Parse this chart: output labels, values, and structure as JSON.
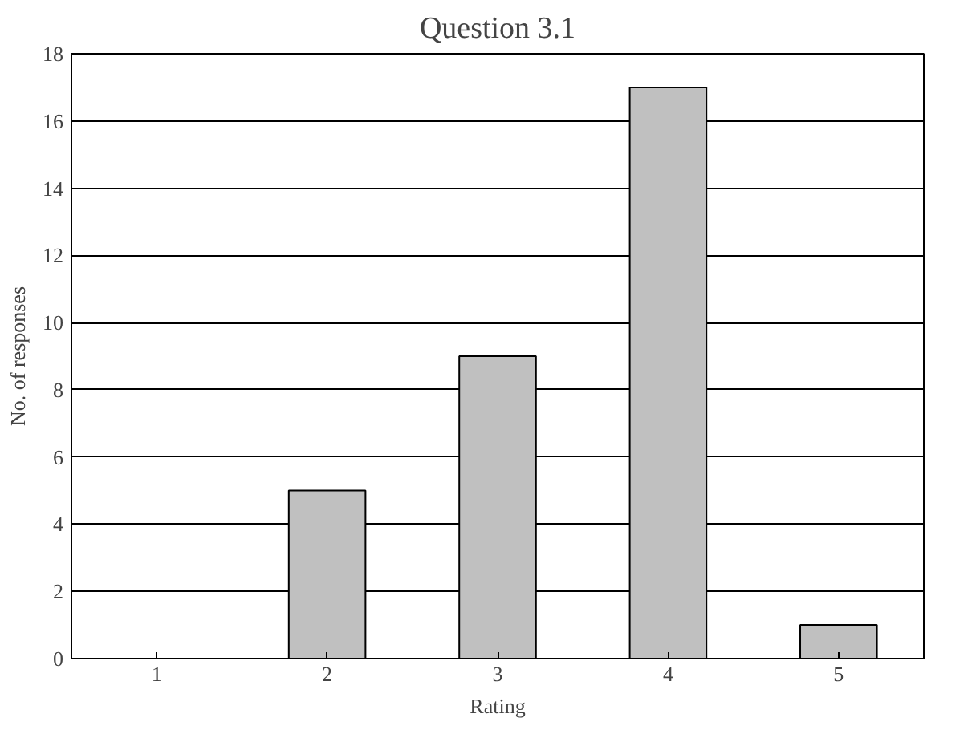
{
  "chart_data": {
    "type": "bar",
    "title": "Question 3.1",
    "xlabel": "Rating",
    "ylabel": "No. of responses",
    "categories": [
      "1",
      "2",
      "3",
      "4",
      "5"
    ],
    "values": [
      0,
      5,
      9,
      17,
      1
    ],
    "color": "#c0c0c0",
    "ylim": [
      0,
      18
    ],
    "yticks": [
      0,
      2,
      4,
      6,
      8,
      10,
      12,
      14,
      16,
      18
    ],
    "grid": "y"
  }
}
